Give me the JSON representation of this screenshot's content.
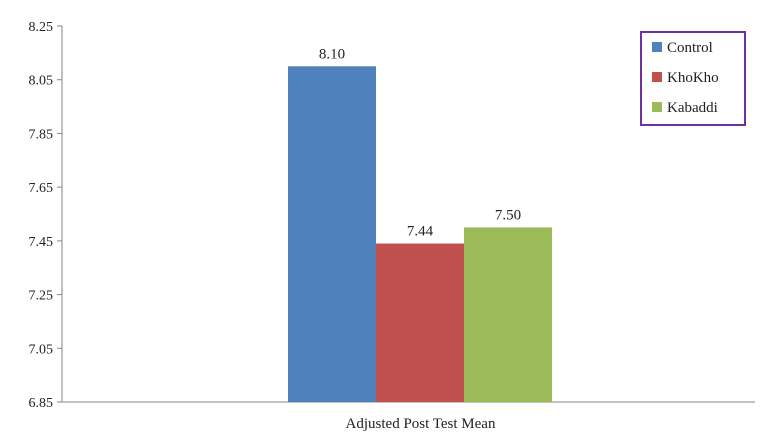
{
  "chart_data": {
    "type": "bar",
    "categories": [
      "Adjusted Post Test Mean"
    ],
    "series": [
      {
        "name": "Control",
        "values": [
          8.1
        ],
        "label": "8.10",
        "color": "#4f81bd"
      },
      {
        "name": "KhoKho",
        "values": [
          7.44
        ],
        "label": "7.44",
        "color": "#c0504d"
      },
      {
        "name": "Kabaddi",
        "values": [
          7.5
        ],
        "label": "7.50",
        "color": "#9bbb59"
      }
    ],
    "ylim": [
      6.85,
      8.25
    ],
    "yticks": [
      "8.25",
      "8.05",
      "7.85",
      "7.65",
      "7.45",
      "7.25",
      "7.05",
      "6.85"
    ],
    "legend_position": "top-right",
    "legend_border_color": "#7030a0",
    "grid": false
  }
}
